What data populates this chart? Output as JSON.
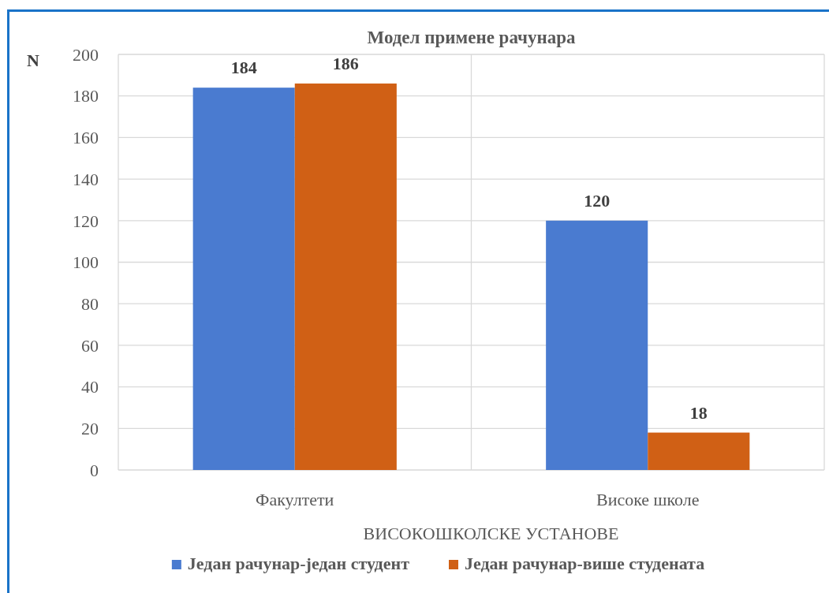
{
  "chart_data": {
    "type": "bar",
    "title": "Модел примене рачунара",
    "xlabel": "ВИСОКОШКОЛСКЕ УСТАНОВЕ",
    "ylabel": "N",
    "categories": [
      "Факултети",
      "Високе школе"
    ],
    "series": [
      {
        "name": "Један рачунар-један студент",
        "color": "#4a7bd0",
        "values": [
          184,
          120
        ]
      },
      {
        "name": "Један рачунар-више студената",
        "color": "#d06015",
        "values": [
          186,
          18
        ]
      }
    ],
    "ylim": [
      0,
      200
    ],
    "yticks": [
      0,
      20,
      40,
      60,
      80,
      100,
      120,
      140,
      160,
      180,
      200
    ],
    "grid": true,
    "legend": "bottom",
    "data_labels": true
  }
}
